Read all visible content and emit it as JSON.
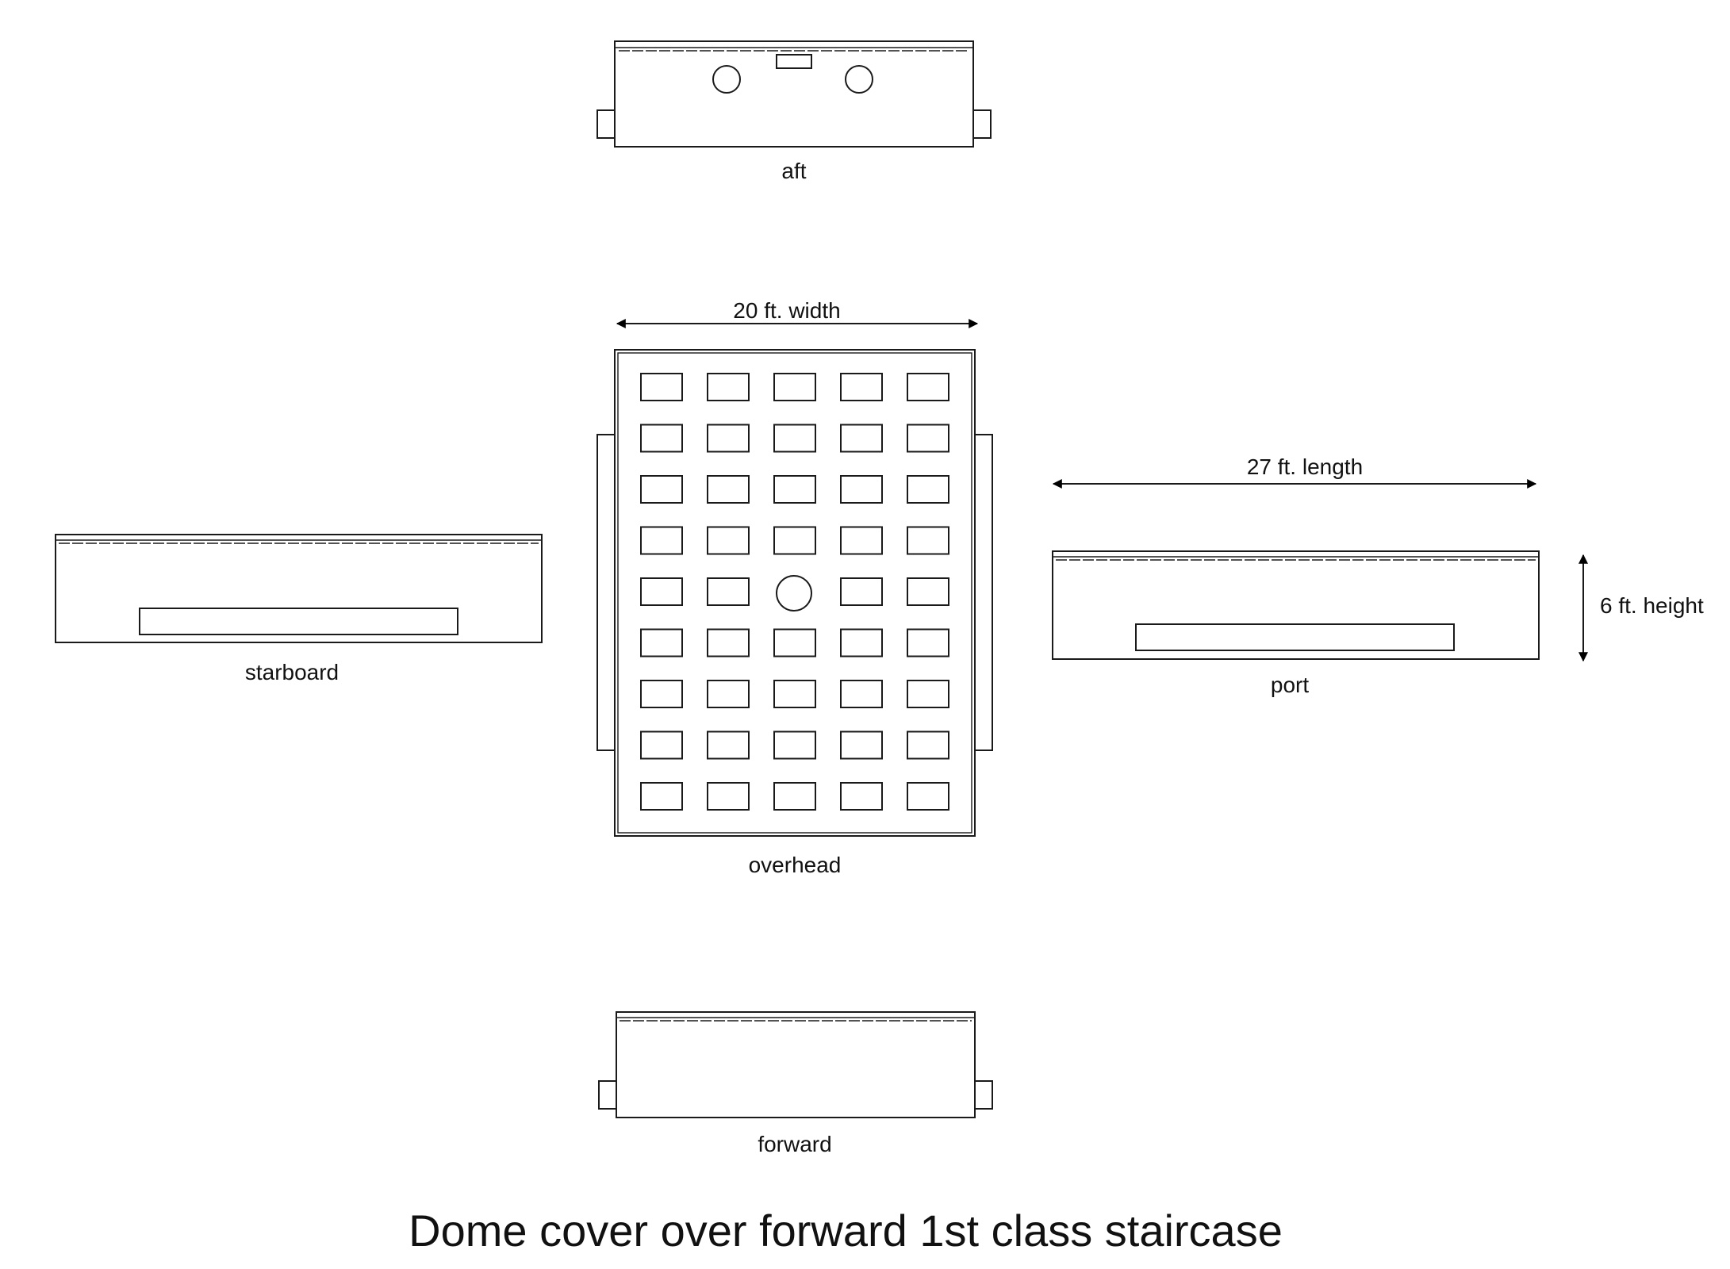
{
  "views": {
    "aft": {
      "label": "aft"
    },
    "overhead": {
      "label": "overhead"
    },
    "starboard": {
      "label": "starboard"
    },
    "port": {
      "label": "port"
    },
    "forward": {
      "label": "forward"
    }
  },
  "dimensions": {
    "width": "20 ft. width",
    "length": "27 ft. length",
    "height": "6 ft. height"
  },
  "title": "Dome cover over forward 1st class staircase"
}
